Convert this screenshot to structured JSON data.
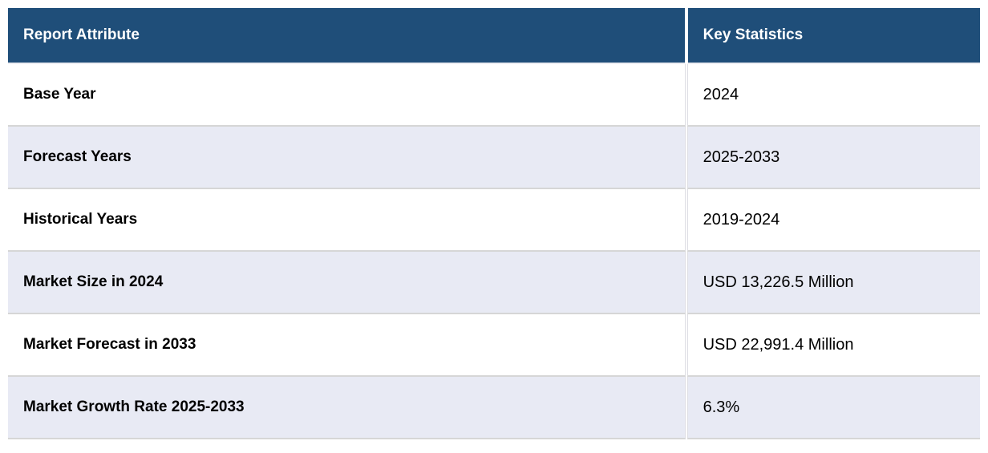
{
  "chart_data": {
    "type": "table",
    "columns": [
      "Report Attribute",
      "Key Statistics"
    ],
    "rows": [
      {
        "attribute": "Base Year",
        "value": "2024"
      },
      {
        "attribute": "Forecast Years",
        "value": "2025-2033"
      },
      {
        "attribute": "Historical Years",
        "value": "2019-2024"
      },
      {
        "attribute": "Market Size in 2024",
        "value": "USD 13,226.5 Million"
      },
      {
        "attribute": "Market Forecast in 2033",
        "value": "USD 22,991.4 Million"
      },
      {
        "attribute": "Market Growth Rate 2025-2033",
        "value": "6.3%"
      }
    ],
    "layout_hints": {
      "zebra_striping": true,
      "stripe_rows": "even",
      "attribute_column_bold": true
    }
  },
  "colors": {
    "header_background": "#1F4E79",
    "header_text": "#FFFFFF",
    "stripe_row_background": "#E8EAF4",
    "plain_row_background": "#FFFFFF",
    "row_border": "#D6D6D6",
    "body_text": "#000000"
  }
}
